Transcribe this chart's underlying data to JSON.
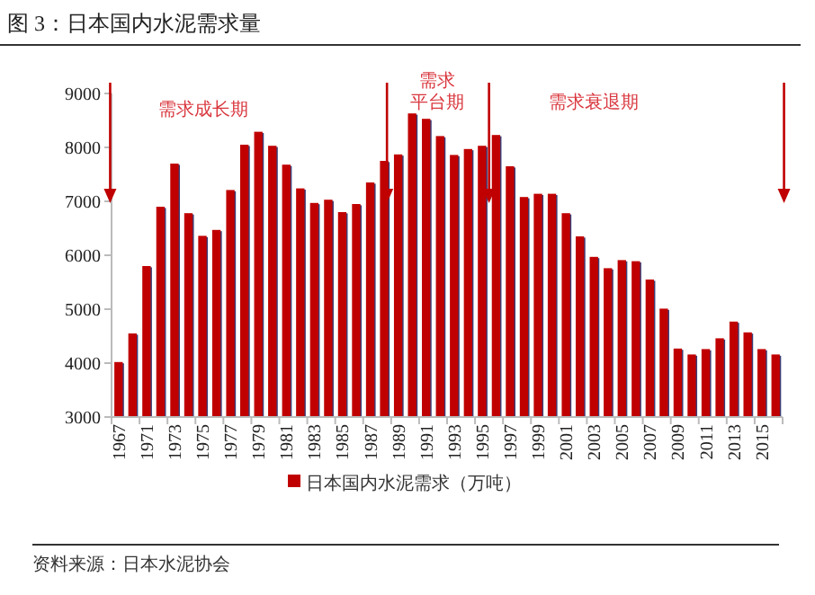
{
  "chart_data": {
    "type": "bar",
    "title": "图 3：日本国内水泥需求量",
    "categories": [
      "1967",
      null,
      "1971",
      null,
      "1973",
      null,
      "1975",
      null,
      "1977",
      null,
      "1979",
      null,
      "1981",
      null,
      "1983",
      null,
      "1985",
      null,
      "1987",
      null,
      "1989",
      null,
      "1991",
      null,
      "1993",
      null,
      "1995",
      null,
      "1997",
      null,
      "1999",
      null,
      "2001",
      null,
      "2003",
      null,
      "2005",
      null,
      "2007",
      null,
      "2009",
      null,
      "2011",
      null,
      "2013",
      null,
      "2015",
      null
    ],
    "series": [
      {
        "name": "日本国内水泥需求（万吨）",
        "color": "#c00000",
        "values": [
          4020,
          4550,
          5800,
          6900,
          7700,
          6780,
          6360,
          6470,
          7210,
          8050,
          8290,
          8030,
          7680,
          7240,
          6970,
          7030,
          6800,
          6950,
          7350,
          7750,
          7870,
          8630,
          8530,
          8210,
          7860,
          7970,
          8030,
          8230,
          7650,
          7080,
          7140,
          7140,
          6780,
          6350,
          5970,
          5760,
          5910,
          5890,
          5550,
          5010,
          4270,
          4160,
          4260,
          4460,
          4770,
          4570,
          4260,
          4160
        ]
      }
    ],
    "ylim": [
      3000,
      9000
    ],
    "yticks": [
      3000,
      4000,
      5000,
      6000,
      7000,
      8000,
      9000
    ],
    "grid": false,
    "legend": "bottom",
    "annotations": [
      "需求成长期",
      "需求平台期",
      "需求衰退期",
      "资料来源：日本水泥协会"
    ]
  }
}
